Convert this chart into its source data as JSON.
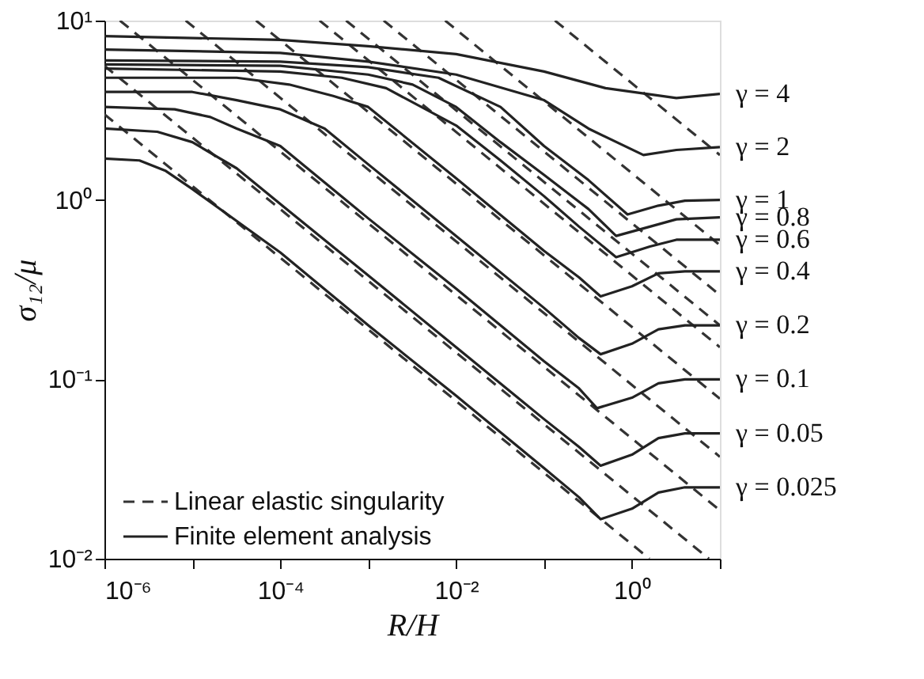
{
  "chart_data": {
    "type": "line",
    "xlabel": "R/H",
    "ylabel": "σ₁₂/μ",
    "log": "xy",
    "grid": false,
    "legend": "bottom left",
    "xlim": [
      1e-06,
      10
    ],
    "ylim": [
      0.01,
      10
    ],
    "xticks": [
      {
        "value": 1e-06,
        "label": "10⁻⁶"
      },
      {
        "value": 1e-05,
        "label": null
      },
      {
        "value": 0.0001,
        "label": "10⁻⁴"
      },
      {
        "value": 0.001,
        "label": null
      },
      {
        "value": 0.01,
        "label": "10⁻²"
      },
      {
        "value": 0.1,
        "label": null
      },
      {
        "value": 1,
        "label": "10⁰"
      },
      {
        "value": 10,
        "label": null
      }
    ],
    "yticks": [
      {
        "value": 0.01,
        "label": "10⁻²"
      },
      {
        "value": 0.1,
        "label": "10⁻¹"
      },
      {
        "value": 1,
        "label": "10⁰"
      },
      {
        "value": 10,
        "label": "10¹"
      }
    ],
    "series": [
      {
        "name": "Linear elastic singularity",
        "color": "#333333",
        "line_style": "dashed",
        "x": [
          1e-06,
          1.58
        ],
        "values": [
          3.0,
          0.01
        ]
      },
      {
        "color": "#333333",
        "line_style": "dashed",
        "x": [
          1e-06,
          7.5
        ],
        "values": [
          5.6,
          0.01
        ]
      },
      {
        "color": "#333333",
        "line_style": "dashed",
        "x": [
          1.5e-06,
          10
        ],
        "values": [
          10,
          0.0186
        ]
      },
      {
        "color": "#333333",
        "line_style": "dashed",
        "x": [
          8.4e-06,
          10
        ],
        "values": [
          10,
          0.037
        ]
      },
      {
        "color": "#333333",
        "line_style": "dashed",
        "x": [
          5.3e-05,
          10
        ],
        "values": [
          10,
          0.078
        ]
      },
      {
        "color": "#333333",
        "line_style": "dashed",
        "x": [
          0.00028,
          10
        ],
        "values": [
          10,
          0.151
        ]
      },
      {
        "color": "#333333",
        "line_style": "dashed",
        "x": [
          0.00056,
          10
        ],
        "values": [
          10,
          0.2
        ]
      },
      {
        "color": "#333333",
        "line_style": "dashed",
        "x": [
          0.0015,
          10
        ],
        "values": [
          10,
          0.295
        ]
      },
      {
        "color": "#333333",
        "line_style": "dashed",
        "x": [
          0.0075,
          10
        ],
        "values": [
          10,
          0.56
        ]
      },
      {
        "color": "#333333",
        "line_style": "dashed",
        "x": [
          0.133,
          10
        ],
        "values": [
          10,
          1.78
        ]
      },
      {
        "name": "γ = 4",
        "color": "#222222",
        "line_style": "solid",
        "x": [
          1e-06,
          0.0001,
          0.001,
          0.01,
          0.1,
          0.5,
          3.2,
          10
        ],
        "values": [
          8.2,
          7.8,
          7.2,
          6.5,
          5.2,
          4.2,
          3.7,
          3.9
        ]
      },
      {
        "name": "γ = 2",
        "color": "#222222",
        "line_style": "solid",
        "x": [
          1e-06,
          0.0001,
          0.001,
          0.01,
          0.1,
          0.32,
          1.35,
          3.2,
          10
        ],
        "values": [
          6.9,
          6.6,
          5.9,
          5.0,
          3.6,
          2.5,
          1.78,
          1.9,
          1.97
        ]
      },
      {
        "name": "γ = 1",
        "color": "#222222",
        "line_style": "solid",
        "x": [
          1e-06,
          0.0001,
          0.001,
          0.0063,
          0.032,
          0.1,
          0.32,
          0.89,
          2,
          4,
          10
        ],
        "values": [
          6.0,
          5.9,
          5.5,
          4.8,
          3.3,
          2.0,
          1.29,
          0.83,
          0.93,
          0.99,
          1.0
        ]
      },
      {
        "name": "γ = 0.8",
        "color": "#222222",
        "line_style": "solid",
        "x": [
          1e-06,
          0.0001,
          0.001,
          0.0032,
          0.01,
          0.032,
          0.1,
          0.32,
          0.66,
          1.6,
          3.2,
          10
        ],
        "values": [
          5.7,
          5.6,
          5.0,
          4.4,
          3.3,
          2.1,
          1.38,
          0.89,
          0.63,
          0.71,
          0.78,
          0.8
        ]
      },
      {
        "name": "γ = 0.6",
        "color": "#222222",
        "line_style": "solid",
        "x": [
          1e-06,
          0.0001,
          0.0005,
          0.0016,
          0.01,
          0.032,
          0.1,
          0.25,
          0.66,
          1.6,
          3.2,
          10
        ],
        "values": [
          5.4,
          5.2,
          4.8,
          4.2,
          2.6,
          1.66,
          1.05,
          0.71,
          0.48,
          0.55,
          0.6,
          0.6
        ]
      },
      {
        "name": "γ = 0.4",
        "color": "#222222",
        "line_style": "solid",
        "x": [
          1e-06,
          3.2e-05,
          0.000126,
          0.0004,
          0.001,
          0.01,
          0.1,
          0.25,
          0.44,
          1,
          2,
          4,
          10
        ],
        "values": [
          4.8,
          4.8,
          4.4,
          3.8,
          3.3,
          1.32,
          0.52,
          0.37,
          0.29,
          0.33,
          0.39,
          0.4,
          0.4
        ]
      },
      {
        "name": "γ = 0.2",
        "color": "#222222",
        "line_style": "solid",
        "x": [
          1e-06,
          1e-05,
          3.2e-05,
          0.0001,
          0.00032,
          0.001,
          0.01,
          0.1,
          0.25,
          0.44,
          1,
          2,
          4,
          10
        ],
        "values": [
          4.0,
          4.0,
          3.6,
          3.2,
          2.5,
          1.58,
          0.63,
          0.25,
          0.17,
          0.138,
          0.158,
          0.19,
          0.2,
          0.2
        ]
      },
      {
        "name": "γ = 0.1",
        "color": "#222222",
        "line_style": "solid",
        "x": [
          1e-06,
          6.3e-06,
          1.6e-05,
          3.2e-05,
          0.0001,
          0.001,
          0.01,
          0.1,
          0.25,
          0.4,
          1,
          2,
          4,
          10
        ],
        "values": [
          3.3,
          3.2,
          2.9,
          2.5,
          2.0,
          0.79,
          0.32,
          0.126,
          0.089,
          0.069,
          0.079,
          0.095,
          0.1,
          0.1
        ]
      },
      {
        "name": "γ = 0.05",
        "color": "#222222",
        "line_style": "solid",
        "x": [
          1e-06,
          4e-06,
          1e-05,
          3.2e-05,
          0.0001,
          0.001,
          0.01,
          0.1,
          0.25,
          0.44,
          1,
          2,
          4,
          10
        ],
        "values": [
          2.5,
          2.4,
          2.1,
          1.5,
          0.95,
          0.38,
          0.151,
          0.06,
          0.042,
          0.033,
          0.038,
          0.047,
          0.05,
          0.05
        ]
      },
      {
        "name": "γ = 0.025",
        "color": "#222222",
        "line_style": "solid",
        "x": [
          1e-06,
          2.5e-06,
          5e-06,
          1e-05,
          0.0001,
          0.001,
          0.01,
          0.1,
          0.25,
          0.44,
          1,
          2,
          4,
          10
        ],
        "values": [
          1.7,
          1.66,
          1.45,
          1.15,
          0.51,
          0.2,
          0.081,
          0.032,
          0.022,
          0.0166,
          0.019,
          0.0234,
          0.025,
          0.025
        ]
      }
    ],
    "annotations": [
      "Finite element analysis"
    ]
  }
}
